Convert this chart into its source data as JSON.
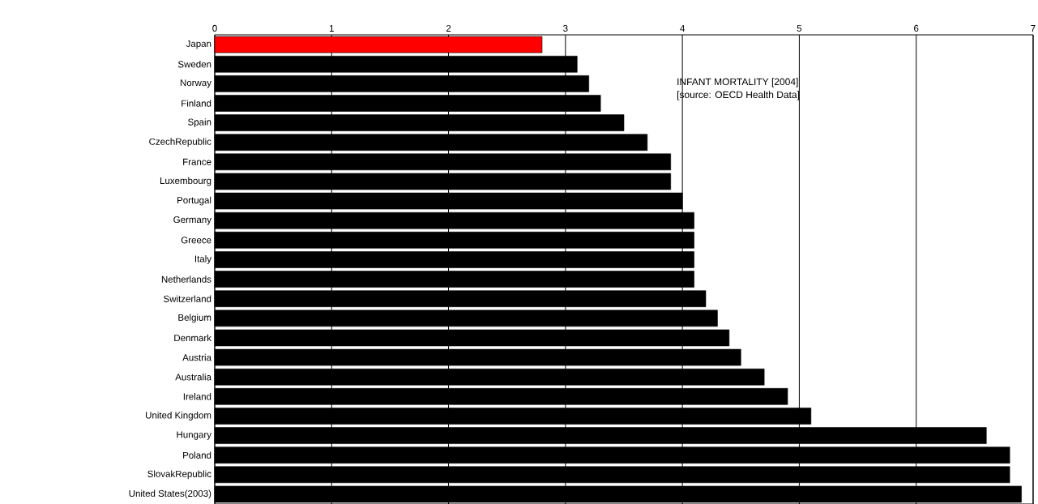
{
  "chart_data": {
    "type": "bar",
    "orientation": "horizontal",
    "categories": [
      "Japan",
      "Sweden",
      "Norway",
      "Finland",
      "Spain",
      "CzechRepublic",
      "France",
      "Luxembourg",
      "Portugal",
      "Germany",
      "Greece",
      "Italy",
      "Netherlands",
      "Switzerland",
      "Belgium",
      "Denmark",
      "Austria",
      "Australia",
      "Ireland",
      "United Kingdom",
      "Hungary",
      "Poland",
      "SlovakRepublic",
      "United States(2003)"
    ],
    "values": [
      2.8,
      3.1,
      3.2,
      3.3,
      3.5,
      3.7,
      3.9,
      3.9,
      4.0,
      4.1,
      4.1,
      4.1,
      4.1,
      4.2,
      4.3,
      4.4,
      4.5,
      4.7,
      4.9,
      5.1,
      6.6,
      6.8,
      6.8,
      6.9
    ],
    "colors": [
      "#ff0000",
      "#000000",
      "#000000",
      "#000000",
      "#000000",
      "#000000",
      "#000000",
      "#000000",
      "#000000",
      "#000000",
      "#000000",
      "#000000",
      "#000000",
      "#000000",
      "#000000",
      "#000000",
      "#000000",
      "#000000",
      "#000000",
      "#000000",
      "#000000",
      "#000000",
      "#000000",
      "#000000"
    ],
    "xlim": [
      0,
      7
    ],
    "xticks": [
      0,
      1,
      2,
      3,
      4,
      5,
      6,
      7
    ],
    "grid": "x",
    "annotations": [
      "INFANT MORTALITY [2004]",
      "[source: OECD Health Data]"
    ]
  }
}
